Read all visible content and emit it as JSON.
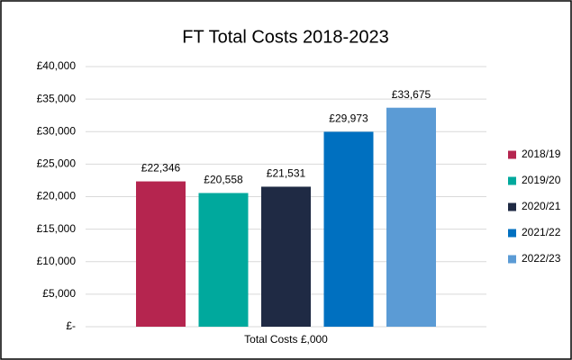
{
  "chart_data": {
    "type": "bar",
    "title": "FT Total Costs 2018-2023",
    "categories": [
      "Total Costs £,000"
    ],
    "series": [
      {
        "name": "2018/19",
        "color": "#b5254f",
        "values": [
          22346
        ],
        "value_labels": [
          "£22,346"
        ]
      },
      {
        "name": "2019/20",
        "color": "#00a99d",
        "values": [
          20558
        ],
        "value_labels": [
          "£20,558"
        ]
      },
      {
        "name": "2020/21",
        "color": "#1f2a44",
        "values": [
          21531
        ],
        "value_labels": [
          "£21,531"
        ]
      },
      {
        "name": "2021/22",
        "color": "#0070c0",
        "values": [
          29973
        ],
        "value_labels": [
          "£29,973"
        ]
      },
      {
        "name": "2022/23",
        "color": "#5b9bd5",
        "values": [
          33675
        ],
        "value_labels": [
          "£33,675"
        ]
      }
    ],
    "ylim": [
      0,
      40000
    ],
    "yticks": [
      {
        "value": 0,
        "label": "£-"
      },
      {
        "value": 5000,
        "label": "£5,000"
      },
      {
        "value": 10000,
        "label": "£10,000"
      },
      {
        "value": 15000,
        "label": "£15,000"
      },
      {
        "value": 20000,
        "label": "£20,000"
      },
      {
        "value": 25000,
        "label": "£25,000"
      },
      {
        "value": 30000,
        "label": "£30,000"
      },
      {
        "value": 35000,
        "label": "£35,000"
      },
      {
        "value": 40000,
        "label": "£40,000"
      }
    ],
    "grid": true,
    "legend": "right"
  }
}
